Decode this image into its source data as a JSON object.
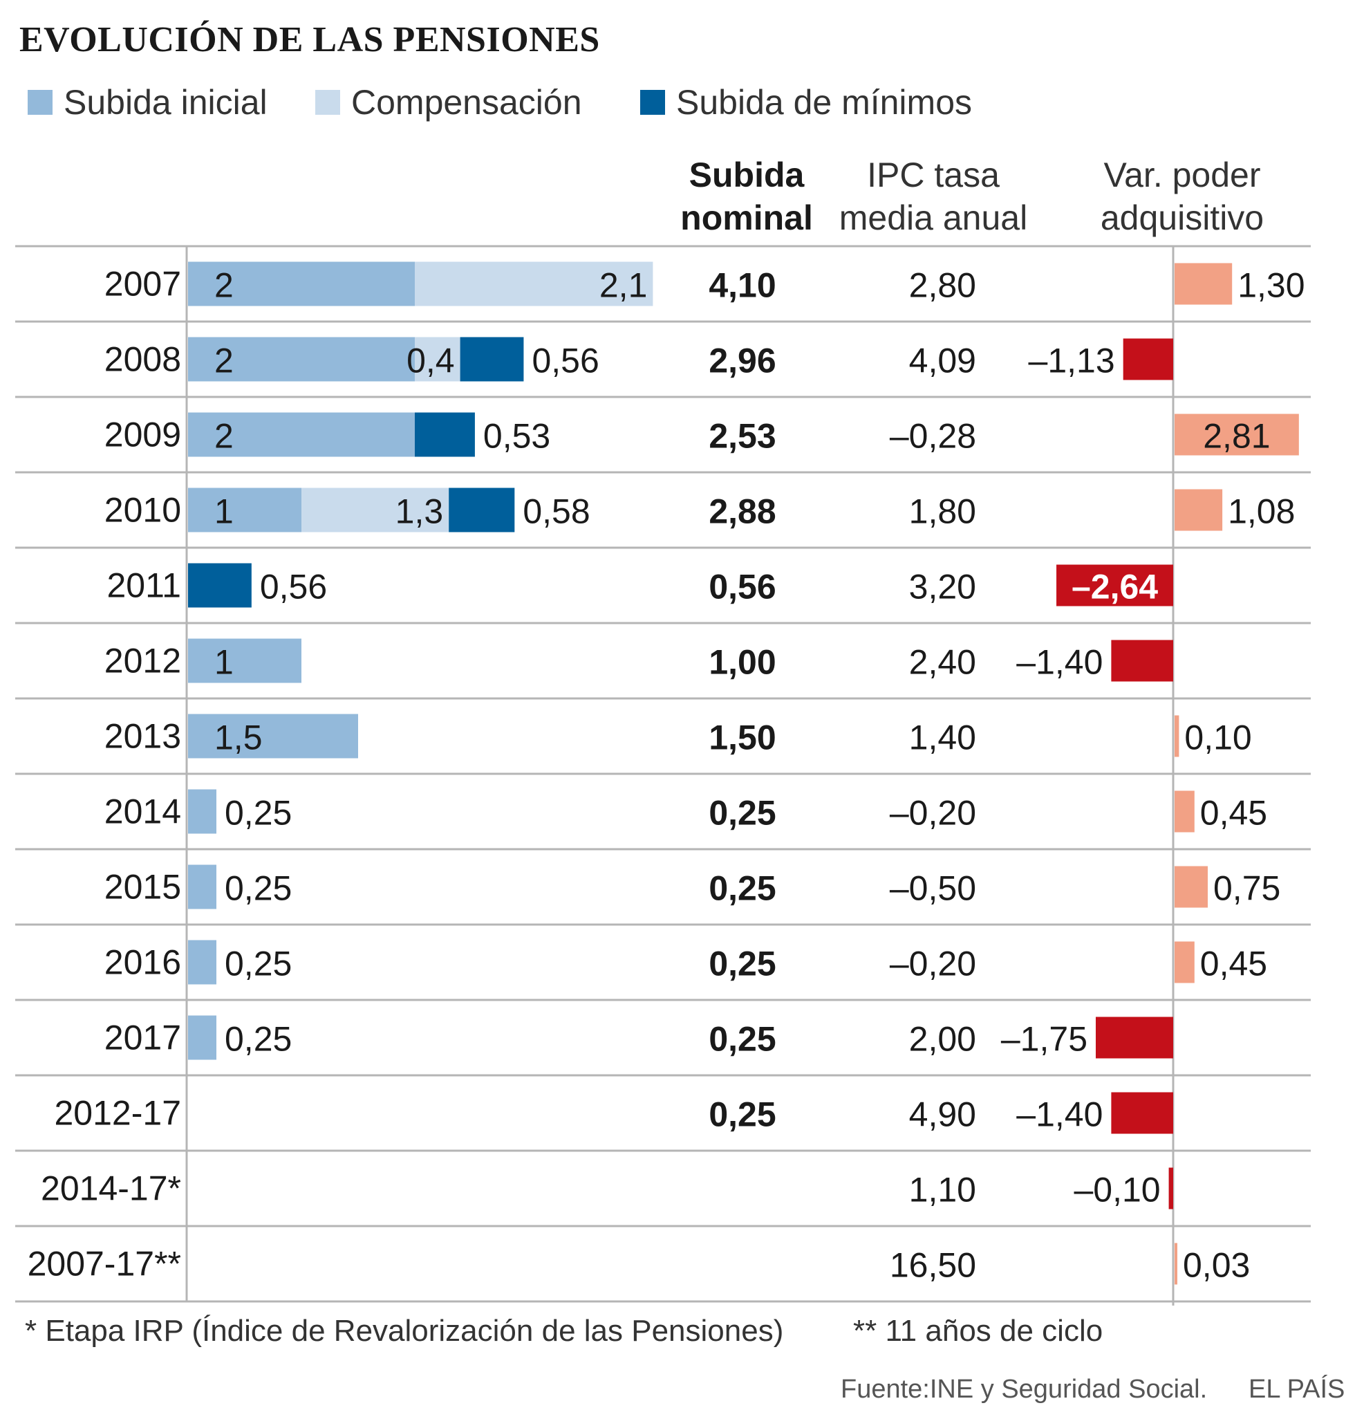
{
  "title": "EVOLUCIÓN DE LAS PENSIONES",
  "legend": [
    {
      "label": "Subida inicial",
      "color": "#93b9da"
    },
    {
      "label": "Compensación",
      "color": "#c9dbec"
    },
    {
      "label": "Subida  de mínimos",
      "color": "#005f9b"
    }
  ],
  "headers": {
    "nominal_line1": "Subida",
    "nominal_line2": "nominal",
    "ipc_line1": "IPC tasa",
    "ipc_line2": "media anual",
    "var_line1": "Var. poder",
    "var_line2": "adquisitivo"
  },
  "footnotes": {
    "irp": "* Etapa IRP (Índice de Revalorización de las Pensiones)",
    "cycle": "** 11 años de ciclo"
  },
  "source": "Fuente:INE y Seguridad Social.",
  "brand": "EL PAÍS",
  "chart_data": {
    "type": "table",
    "colors": {
      "inicial": "#93b9da",
      "compensacion": "#c9dbec",
      "minimos": "#005f9b",
      "positive": "#f2a185",
      "negative": "#c4101a"
    },
    "rows": [
      {
        "year": "2007",
        "inicial": 2,
        "compensacion": 2.1,
        "minimos": null,
        "inicial_label": "2",
        "compensacion_label": "2,1",
        "minimos_label": "",
        "nominal": "4,10",
        "ipc": "2,80",
        "var": 1.3,
        "var_label": "1,30"
      },
      {
        "year": "2008",
        "inicial": 2,
        "compensacion": 0.4,
        "minimos": 0.56,
        "inicial_label": "2",
        "compensacion_label": "0,4",
        "minimos_label": "0,56",
        "nominal": "2,96",
        "ipc": "4,09",
        "var": -1.13,
        "var_label": "–1,13"
      },
      {
        "year": "2009",
        "inicial": 2,
        "compensacion": null,
        "minimos": 0.53,
        "inicial_label": "2",
        "compensacion_label": "",
        "minimos_label": "0,53",
        "nominal": "2,53",
        "ipc": "–0,28",
        "var": 2.81,
        "var_label": "2,81"
      },
      {
        "year": "2010",
        "inicial": 1,
        "compensacion": 1.3,
        "minimos": 0.58,
        "inicial_label": "1",
        "compensacion_label": "1,3",
        "minimos_label": "0,58",
        "nominal": "2,88",
        "ipc": "1,80",
        "var": 1.08,
        "var_label": "1,08"
      },
      {
        "year": "2011",
        "inicial": null,
        "compensacion": null,
        "minimos": 0.56,
        "inicial_label": "",
        "compensacion_label": "",
        "minimos_label": "0,56",
        "nominal": "0,56",
        "ipc": "3,20",
        "var": -2.64,
        "var_label": "–2,64"
      },
      {
        "year": "2012",
        "inicial": 1,
        "compensacion": null,
        "minimos": null,
        "inicial_label": "1",
        "compensacion_label": "",
        "minimos_label": "",
        "nominal": "1,00",
        "ipc": "2,40",
        "var": -1.4,
        "var_label": "–1,40"
      },
      {
        "year": "2013",
        "inicial": 1.5,
        "compensacion": null,
        "minimos": null,
        "inicial_label": "1,5",
        "compensacion_label": "",
        "minimos_label": "",
        "nominal": "1,50",
        "ipc": "1,40",
        "var": 0.1,
        "var_label": "0,10"
      },
      {
        "year": "2014",
        "inicial": 0.25,
        "compensacion": null,
        "minimos": null,
        "inicial_label": "0,25",
        "compensacion_label": "",
        "minimos_label": "",
        "nominal": "0,25",
        "ipc": "–0,20",
        "var": 0.45,
        "var_label": "0,45"
      },
      {
        "year": "2015",
        "inicial": 0.25,
        "compensacion": null,
        "minimos": null,
        "inicial_label": "0,25",
        "compensacion_label": "",
        "minimos_label": "",
        "nominal": "0,25",
        "ipc": "–0,50",
        "var": 0.75,
        "var_label": "0,75"
      },
      {
        "year": "2016",
        "inicial": 0.25,
        "compensacion": null,
        "minimos": null,
        "inicial_label": "0,25",
        "compensacion_label": "",
        "minimos_label": "",
        "nominal": "0,25",
        "ipc": "–0,20",
        "var": 0.45,
        "var_label": "0,45"
      },
      {
        "year": "2017",
        "inicial": 0.25,
        "compensacion": null,
        "minimos": null,
        "inicial_label": "0,25",
        "compensacion_label": "",
        "minimos_label": "",
        "nominal": "0,25",
        "ipc": "2,00",
        "var": -1.75,
        "var_label": "–1,75"
      },
      {
        "year": "2012-17",
        "inicial": null,
        "compensacion": null,
        "minimos": null,
        "inicial_label": "",
        "compensacion_label": "",
        "minimos_label": "",
        "nominal": "0,25",
        "ipc": "4,90",
        "var": -1.4,
        "var_label": "–1,40"
      },
      {
        "year": "2014-17*",
        "inicial": null,
        "compensacion": null,
        "minimos": null,
        "inicial_label": "",
        "compensacion_label": "",
        "minimos_label": "",
        "nominal": "",
        "ipc": "1,10",
        "var": -0.1,
        "var_label": "–0,10"
      },
      {
        "year": "2007-17**",
        "inicial": null,
        "compensacion": null,
        "minimos": null,
        "inicial_label": "",
        "compensacion_label": "",
        "minimos_label": "",
        "nominal": "",
        "ipc": "16,50",
        "var": 0.03,
        "var_label": "0,03"
      }
    ]
  }
}
